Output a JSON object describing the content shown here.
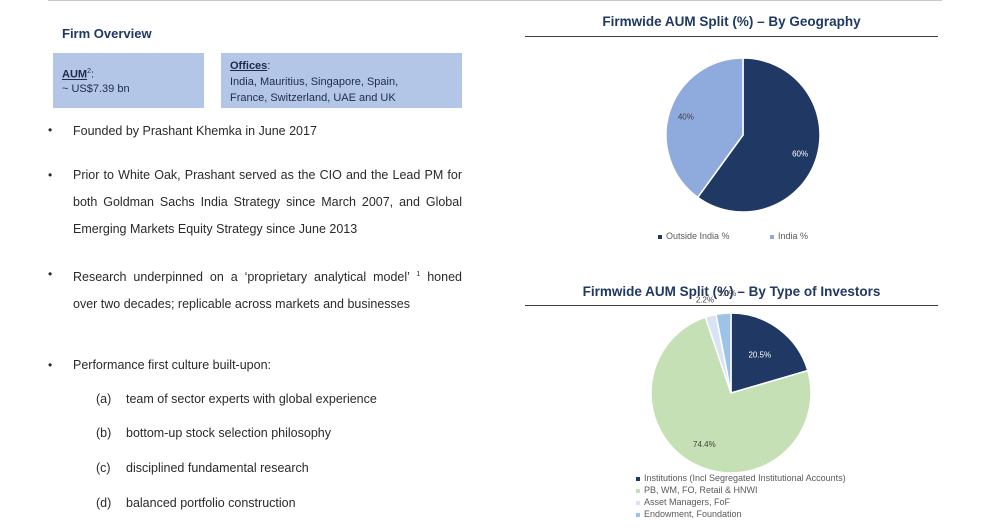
{
  "overview": {
    "title": "Firm Overview",
    "aum_label": "AUM",
    "aum_sup": "2",
    "aum_colon": ":",
    "aum_value": "~ US$7.39 bn",
    "offices_label": "Offices",
    "offices_colon": ":",
    "offices_line1": "India, Mauritius, Singapore, Spain,",
    "offices_line2": "France, Switzerland, UAE and UK"
  },
  "bullets": [
    {
      "text": "Founded by Prashant Khemka in June 2017"
    },
    {
      "text": "Prior to White Oak, Prashant served as the CIO and the Lead PM for both Goldman Sachs India Strategy since March 2007, and Global Emerging Markets Equity Strategy since June 2013"
    },
    {
      "text": "Research underpinned on a ‘proprietary analytical model’",
      "sup": "1",
      "text2": "honed over two decades; replicable across markets and businesses"
    },
    {
      "text": "Performance first culture built-upon:"
    }
  ],
  "subitems": [
    {
      "label": "(a)",
      "text": "team of sector experts with global experience"
    },
    {
      "label": "(b)",
      "text": "bottom-up stock selection philosophy"
    },
    {
      "label": "(c)",
      "text": "disciplined fundamental research"
    },
    {
      "label": "(d)",
      "text": "balanced portfolio construction"
    }
  ],
  "bullet_char": "•",
  "colors": {
    "navy": "#203864",
    "lightblue": "#8faadc",
    "green": "#c5e0b4",
    "verylight": "#dae3f3",
    "midblue": "#9dc3e6"
  },
  "chart_data": [
    {
      "type": "pie",
      "title": "Firmwide AUM Split (%) – By Geography",
      "categories": [
        "Outside India %",
        "India %"
      ],
      "values": [
        60,
        40
      ],
      "data_labels": [
        "60%",
        "40%"
      ],
      "colors": [
        "#203864",
        "#8faadc"
      ],
      "legend_position": "bottom"
    },
    {
      "type": "pie",
      "title": "Firmwide AUM Split (%) – By Type of Investors",
      "categories": [
        "Institutions (Incl Segregated Institutional Accounts)",
        "PB, WM, FO, Retail & HNWI",
        "Asset Managers, FoF",
        "Endowment, Foundation"
      ],
      "values": [
        20.5,
        74.4,
        2.2,
        3.0
      ],
      "data_labels": [
        "20.5%",
        "74.4%",
        "2.2%",
        "3.0%"
      ],
      "colors": [
        "#203864",
        "#c5e0b4",
        "#dae3f3",
        "#9dc3e6"
      ],
      "legend_position": "bottom"
    }
  ]
}
